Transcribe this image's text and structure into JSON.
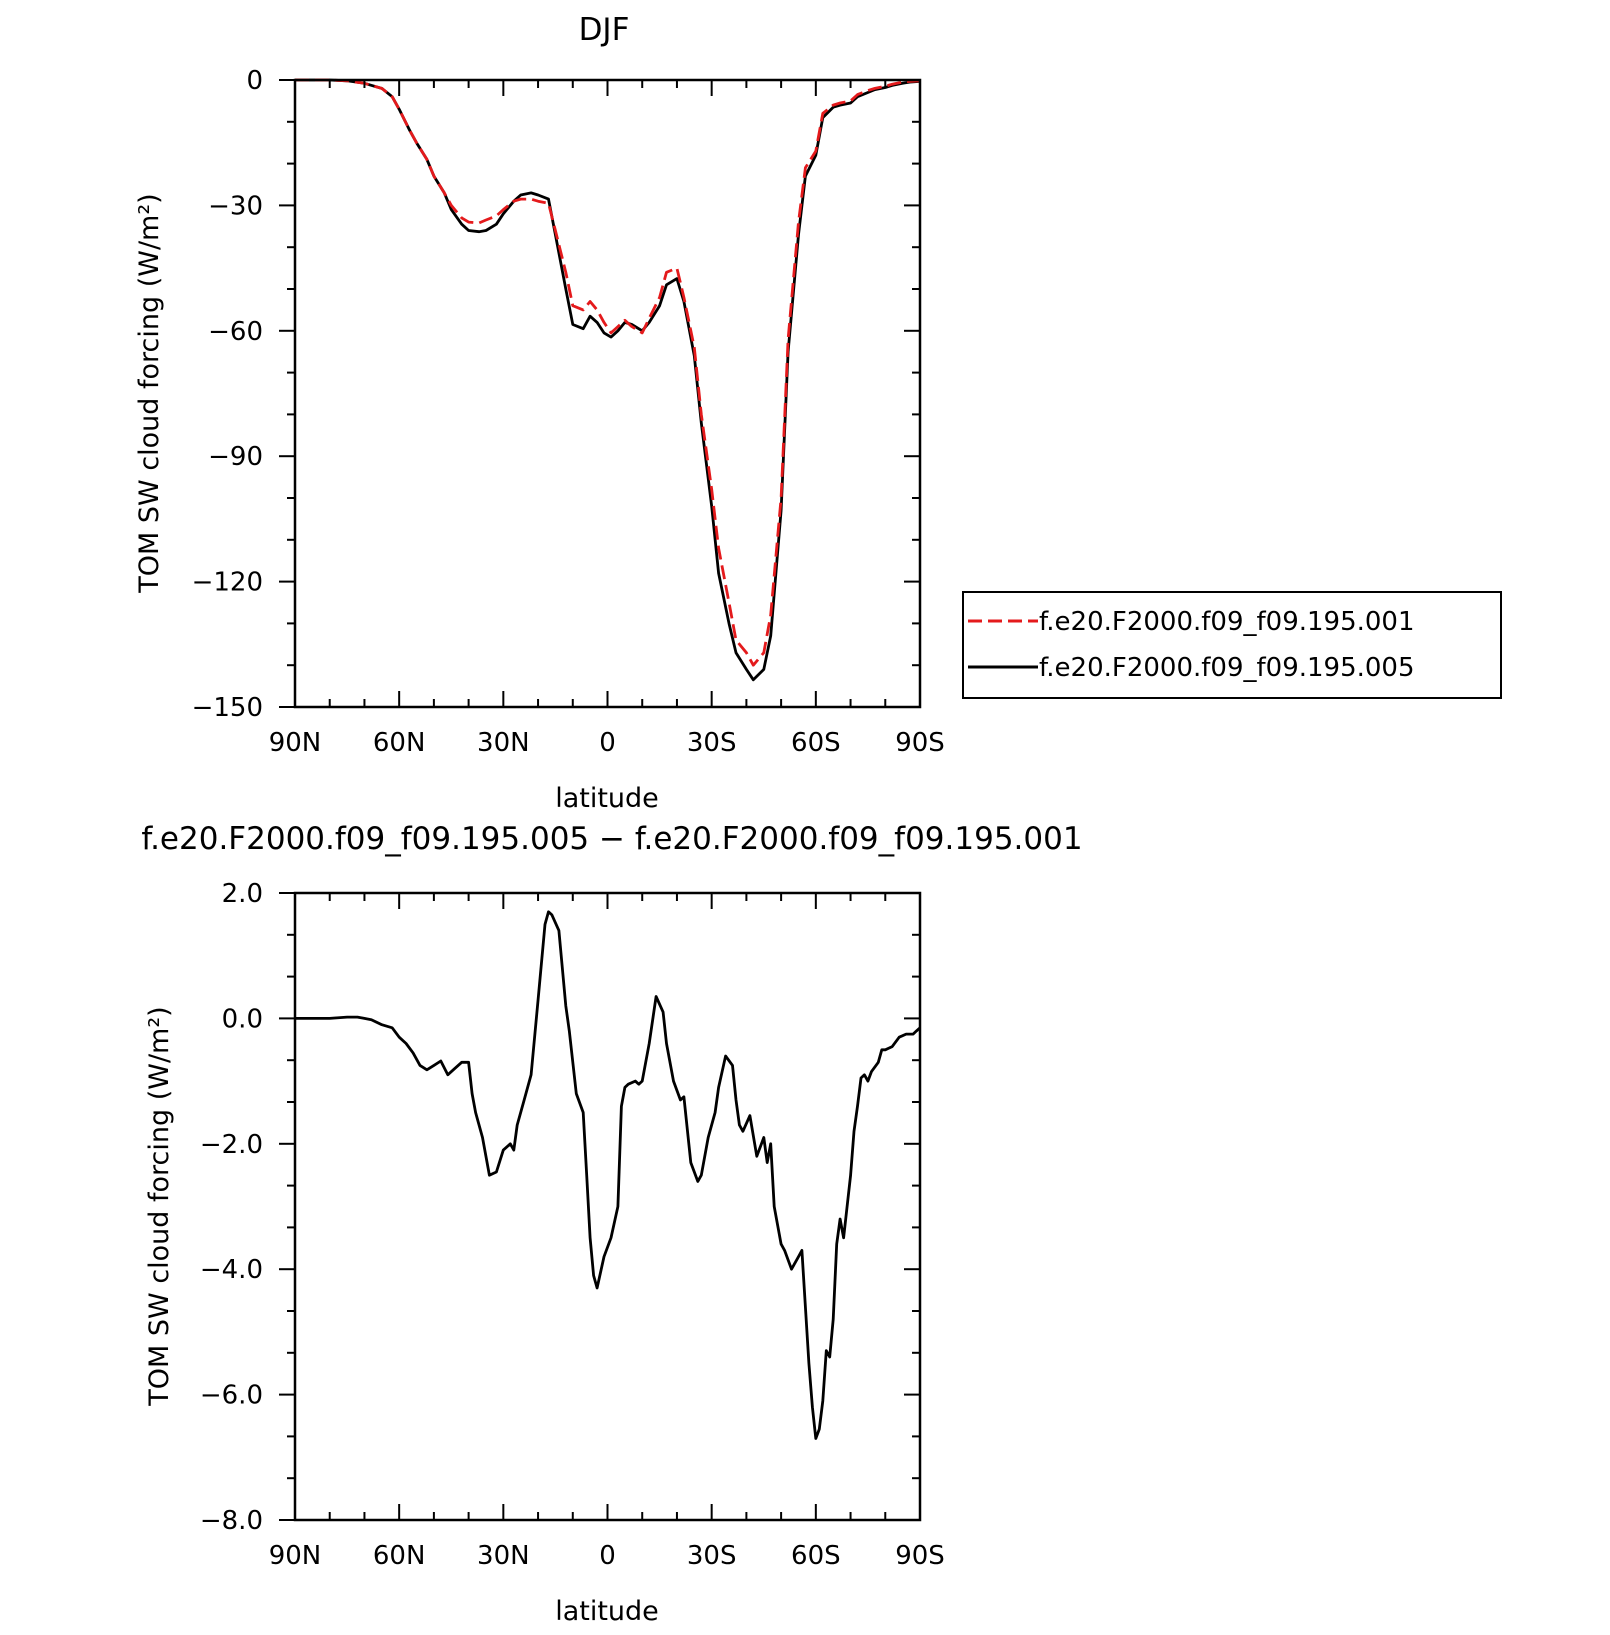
{
  "figure_title": "DJF",
  "diff_title": "f.e20.F2000.f09_f09.195.005 − f.e20.F2000.f09_f09.195.001",
  "chart_data": [
    {
      "type": "line",
      "title": "DJF",
      "xlabel": "latitude",
      "ylabel": "TOM SW cloud forcing (W/m²)",
      "xlim": [
        90,
        -90
      ],
      "ylim": [
        -150,
        0
      ],
      "x_ticks": [
        90,
        60,
        30,
        0,
        -30,
        -60,
        -90
      ],
      "x_tick_labels": [
        "90N",
        "60N",
        "30N",
        "0",
        "30S",
        "60S",
        "90S"
      ],
      "y_ticks": [
        0,
        -30,
        -60,
        -90,
        -120,
        -150
      ],
      "y_tick_labels": [
        "0",
        "−30",
        "−60",
        "−90",
        "−120",
        "−150"
      ],
      "legend": {
        "position": "right",
        "entries": [
          "f.e20.F2000.f09_f09.195.001",
          "f.e20.F2000.f09_f09.195.005"
        ]
      },
      "x": [
        90,
        85,
        80,
        75,
        70,
        65,
        62,
        60,
        57,
        55,
        52,
        50,
        47,
        45,
        42,
        40,
        37,
        35,
        32,
        30,
        27,
        25,
        22,
        20,
        17,
        15,
        12,
        10,
        7,
        5,
        3,
        1,
        -1,
        -3,
        -5,
        -7,
        -10,
        -12,
        -15,
        -17,
        -20,
        -22,
        -25,
        -27,
        -30,
        -32,
        -35,
        -37,
        -40,
        -42,
        -45,
        -47,
        -50,
        -52,
        -55,
        -57,
        -60,
        -62,
        -65,
        -67,
        -70,
        -72,
        -75,
        -77,
        -80,
        -82,
        -85,
        -87,
        -90
      ],
      "series": [
        {
          "name": "f.e20.F2000.f09_f09.195.001",
          "color": "#e41a1c",
          "dash": "dashed",
          "values": [
            0,
            0,
            0,
            -0.2,
            -0.8,
            -2,
            -4,
            -7,
            -12,
            -15,
            -19,
            -23,
            -27,
            -30,
            -33,
            -34,
            -34.2,
            -33.5,
            -32.5,
            -31,
            -29,
            -28.5,
            -28.5,
            -29,
            -29.5,
            -36,
            -46,
            -54,
            -55,
            -53,
            -55,
            -58,
            -60.5,
            -59,
            -57.5,
            -59,
            -60.5,
            -57,
            -52,
            -46,
            -45,
            -52,
            -64,
            -80,
            -98,
            -112,
            -125,
            -134,
            -137,
            -140,
            -137,
            -128,
            -100,
            -62,
            -34,
            -21,
            -17,
            -8,
            -6,
            -5.5,
            -5,
            -3.5,
            -2.5,
            -2,
            -1.5,
            -1,
            -0.5,
            -0.3,
            -0.2
          ]
        },
        {
          "name": "f.e20.F2000.f09_f09.195.005",
          "color": "#000000",
          "dash": "solid",
          "values": [
            0,
            0,
            0,
            -0.2,
            -0.8,
            -2,
            -4,
            -7,
            -12,
            -15,
            -19,
            -23,
            -27,
            -31,
            -34.5,
            -36,
            -36.3,
            -36,
            -34.5,
            -32,
            -29,
            -27.5,
            -27,
            -27.5,
            -28.5,
            -37,
            -50,
            -58.5,
            -59.5,
            -56.5,
            -58,
            -60.5,
            -61.5,
            -60,
            -58,
            -58.5,
            -60,
            -58,
            -54,
            -49,
            -47.5,
            -53,
            -66,
            -82,
            -102,
            -118,
            -130,
            -137,
            -141,
            -143.5,
            -141,
            -133,
            -103,
            -65,
            -37,
            -23,
            -18,
            -9,
            -6.5,
            -6,
            -5.5,
            -4,
            -3,
            -2.3,
            -1.8,
            -1.3,
            -0.8,
            -0.5,
            -0.3
          ]
        }
      ]
    },
    {
      "type": "line",
      "title": "f.e20.F2000.f09_f09.195.005 − f.e20.F2000.f09_f09.195.001",
      "xlabel": "latitude",
      "ylabel": "TOM SW cloud forcing (W/m²)",
      "xlim": [
        90,
        -90
      ],
      "ylim": [
        -8,
        2
      ],
      "x_ticks": [
        90,
        60,
        30,
        0,
        -30,
        -60,
        -90
      ],
      "x_tick_labels": [
        "90N",
        "60N",
        "30N",
        "0",
        "30S",
        "60S",
        "90S"
      ],
      "y_ticks": [
        2,
        0,
        -2,
        -4,
        -6,
        -8
      ],
      "y_tick_labels": [
        "2.0",
        "0.0",
        "−2.0",
        "−4.0",
        "−6.0",
        "−8.0"
      ],
      "x": [
        90,
        85,
        80,
        75,
        72,
        70,
        68,
        65,
        62,
        60,
        58,
        56,
        54,
        52,
        50,
        48,
        46,
        44,
        42,
        40,
        39,
        38,
        36,
        34,
        32,
        30,
        28,
        27,
        26,
        24,
        22,
        20,
        18,
        17,
        16,
        14,
        12,
        11,
        9,
        7,
        6,
        5,
        4,
        3,
        1,
        -1,
        -3,
        -4,
        -5,
        -6,
        -8,
        -9,
        -10,
        -12,
        -14,
        -16,
        -17,
        -19,
        -21,
        -22,
        -24,
        -26,
        -27,
        -29,
        -31,
        -32,
        -34,
        -36,
        -37,
        -38,
        -39,
        -41,
        -43,
        -45,
        -46,
        -47,
        -48,
        -50,
        -51,
        -53,
        -55,
        -56,
        -58,
        -59,
        -60,
        -61,
        -62,
        -63,
        -64,
        -65,
        -66,
        -67,
        -68,
        -69,
        -70,
        -71,
        -72,
        -73,
        -74,
        -75,
        -76,
        -78,
        -79,
        -80,
        -82,
        -84,
        -86,
        -88,
        -89,
        -90
      ],
      "series": [
        {
          "name": "f.e20.F2000.f09_f09.195.005 − f.e20.F2000.f09_f09.195.001",
          "color": "#000000",
          "dash": "solid",
          "values": [
            0,
            0,
            0,
            0.02,
            0.02,
            0,
            -0.02,
            -0.1,
            -0.15,
            -0.3,
            -0.4,
            -0.55,
            -0.75,
            -0.82,
            -0.75,
            -0.68,
            -0.9,
            -0.8,
            -0.7,
            -0.7,
            -1.2,
            -1.5,
            -1.9,
            -2.5,
            -2.45,
            -2.1,
            -2.0,
            -2.1,
            -1.7,
            -1.3,
            -0.9,
            0.3,
            1.5,
            1.7,
            1.65,
            1.4,
            0.2,
            -0.2,
            -1.2,
            -1.5,
            -2.5,
            -3.5,
            -4.1,
            -4.3,
            -3.8,
            -3.5,
            -3.0,
            -1.4,
            -1.1,
            -1.05,
            -1.0,
            -1.05,
            -1.0,
            -0.4,
            0.35,
            0.1,
            -0.4,
            -1.0,
            -1.3,
            -1.25,
            -2.3,
            -2.6,
            -2.5,
            -1.9,
            -1.5,
            -1.1,
            -0.6,
            -0.75,
            -1.3,
            -1.7,
            -1.8,
            -1.55,
            -2.2,
            -1.9,
            -2.3,
            -2.0,
            -3.0,
            -3.6,
            -3.7,
            -4.0,
            -3.8,
            -3.7,
            -5.5,
            -6.2,
            -6.7,
            -6.55,
            -6.1,
            -5.3,
            -5.4,
            -4.8,
            -3.6,
            -3.2,
            -3.5,
            -3.0,
            -2.5,
            -1.8,
            -1.4,
            -0.95,
            -0.9,
            -1.0,
            -0.85,
            -0.7,
            -0.5,
            -0.5,
            -0.45,
            -0.3,
            -0.25,
            -0.25,
            -0.2,
            -0.15
          ]
        }
      ]
    }
  ]
}
